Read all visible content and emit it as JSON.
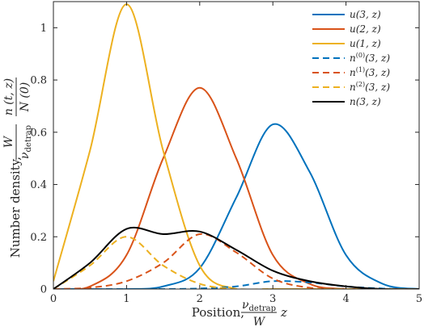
{
  "chart_data": {
    "type": "line",
    "xlabel": "Position, ν_detrap/W z",
    "xlabel_parts": {
      "prefix": "Position, ",
      "frac_num": "ν",
      "frac_num_sub": "detrap",
      "frac_den": "W",
      "suffix": "z"
    },
    "ylabel": "Number density, W/ν_detrap · n(t,z)/N(0)",
    "ylabel_parts": {
      "prefix": "Number density, ",
      "frac1_num": "W",
      "frac1_den": "ν",
      "frac1_den_sub": "detrap",
      "frac2_num": "n (t, z)",
      "frac2_den": "N (0)"
    },
    "xlim": [
      0,
      5
    ],
    "ylim": [
      0,
      1.1
    ],
    "xticks": [
      "0",
      "1",
      "2",
      "3",
      "4",
      "5"
    ],
    "yticks": [
      "0",
      "0.2",
      "0.4",
      "0.6",
      "0.8",
      "1"
    ],
    "grid": false,
    "legend_position": "top-right",
    "series": [
      {
        "name": "u(3, z)",
        "color": "#0072BD",
        "style": "solid",
        "x": [
          0,
          0.5,
          1,
          1.5,
          2,
          2.5,
          3,
          3.5,
          4,
          4.5,
          5
        ],
        "y": [
          0.0,
          0.0,
          0.0,
          0.01,
          0.08,
          0.35,
          0.63,
          0.45,
          0.13,
          0.02,
          0.0
        ]
      },
      {
        "name": "u(2, z)",
        "color": "#D95319",
        "style": "solid",
        "x": [
          0,
          0.5,
          1,
          1.5,
          2,
          2.5,
          3,
          3.5,
          4,
          4.5,
          5
        ],
        "y": [
          0.0,
          0.01,
          0.13,
          0.5,
          0.77,
          0.5,
          0.13,
          0.02,
          0.0,
          0.0,
          0.0
        ]
      },
      {
        "name": "u(1, z)",
        "color": "#EDB120",
        "style": "solid",
        "x": [
          0,
          0.5,
          1,
          1.5,
          2,
          2.5,
          3,
          3.5,
          4,
          4.5,
          5
        ],
        "y": [
          0.03,
          0.53,
          1.09,
          0.53,
          0.09,
          0.0,
          0.0,
          0.0,
          0.0,
          0.0,
          0.0
        ]
      },
      {
        "name": "n⁽⁰⁾(3, z)",
        "label_base": "n",
        "label_sup": "(0)",
        "label_args": "(3, z)",
        "color": "#0072BD",
        "style": "dashed",
        "x": [
          0,
          0.5,
          1,
          1.5,
          2,
          2.5,
          3,
          3.5,
          4,
          4.5,
          5
        ],
        "y": [
          0.0,
          0.0,
          0.0,
          0.0,
          0.002,
          0.01,
          0.03,
          0.025,
          0.01,
          0.002,
          0.0
        ]
      },
      {
        "name": "n⁽¹⁾(3, z)",
        "label_base": "n",
        "label_sup": "(1)",
        "label_args": "(3, z)",
        "color": "#D95319",
        "style": "dashed",
        "x": [
          0,
          0.5,
          1,
          1.5,
          2,
          2.5,
          3,
          3.5,
          4,
          4.5,
          5
        ],
        "y": [
          0.0,
          0.005,
          0.03,
          0.1,
          0.21,
          0.14,
          0.04,
          0.005,
          0.0,
          0.0,
          0.0
        ]
      },
      {
        "name": "n⁽²⁾(3, z)",
        "label_base": "n",
        "label_sup": "(2)",
        "label_args": "(3, z)",
        "color": "#EDB120",
        "style": "dashed",
        "x": [
          0,
          0.5,
          1,
          1.5,
          2,
          2.5,
          3,
          3.5,
          4,
          4.5,
          5
        ],
        "y": [
          0.0,
          0.09,
          0.2,
          0.09,
          0.02,
          0.0,
          0.0,
          0.0,
          0.0,
          0.0,
          0.0
        ]
      },
      {
        "name": "n(3, z)",
        "color": "#000000",
        "style": "solid",
        "x": [
          0,
          0.5,
          1,
          1.5,
          2,
          2.5,
          3,
          3.5,
          4,
          4.5,
          5
        ],
        "y": [
          0.0,
          0.1,
          0.23,
          0.21,
          0.22,
          0.15,
          0.07,
          0.03,
          0.01,
          0.0,
          0.0
        ]
      }
    ]
  }
}
